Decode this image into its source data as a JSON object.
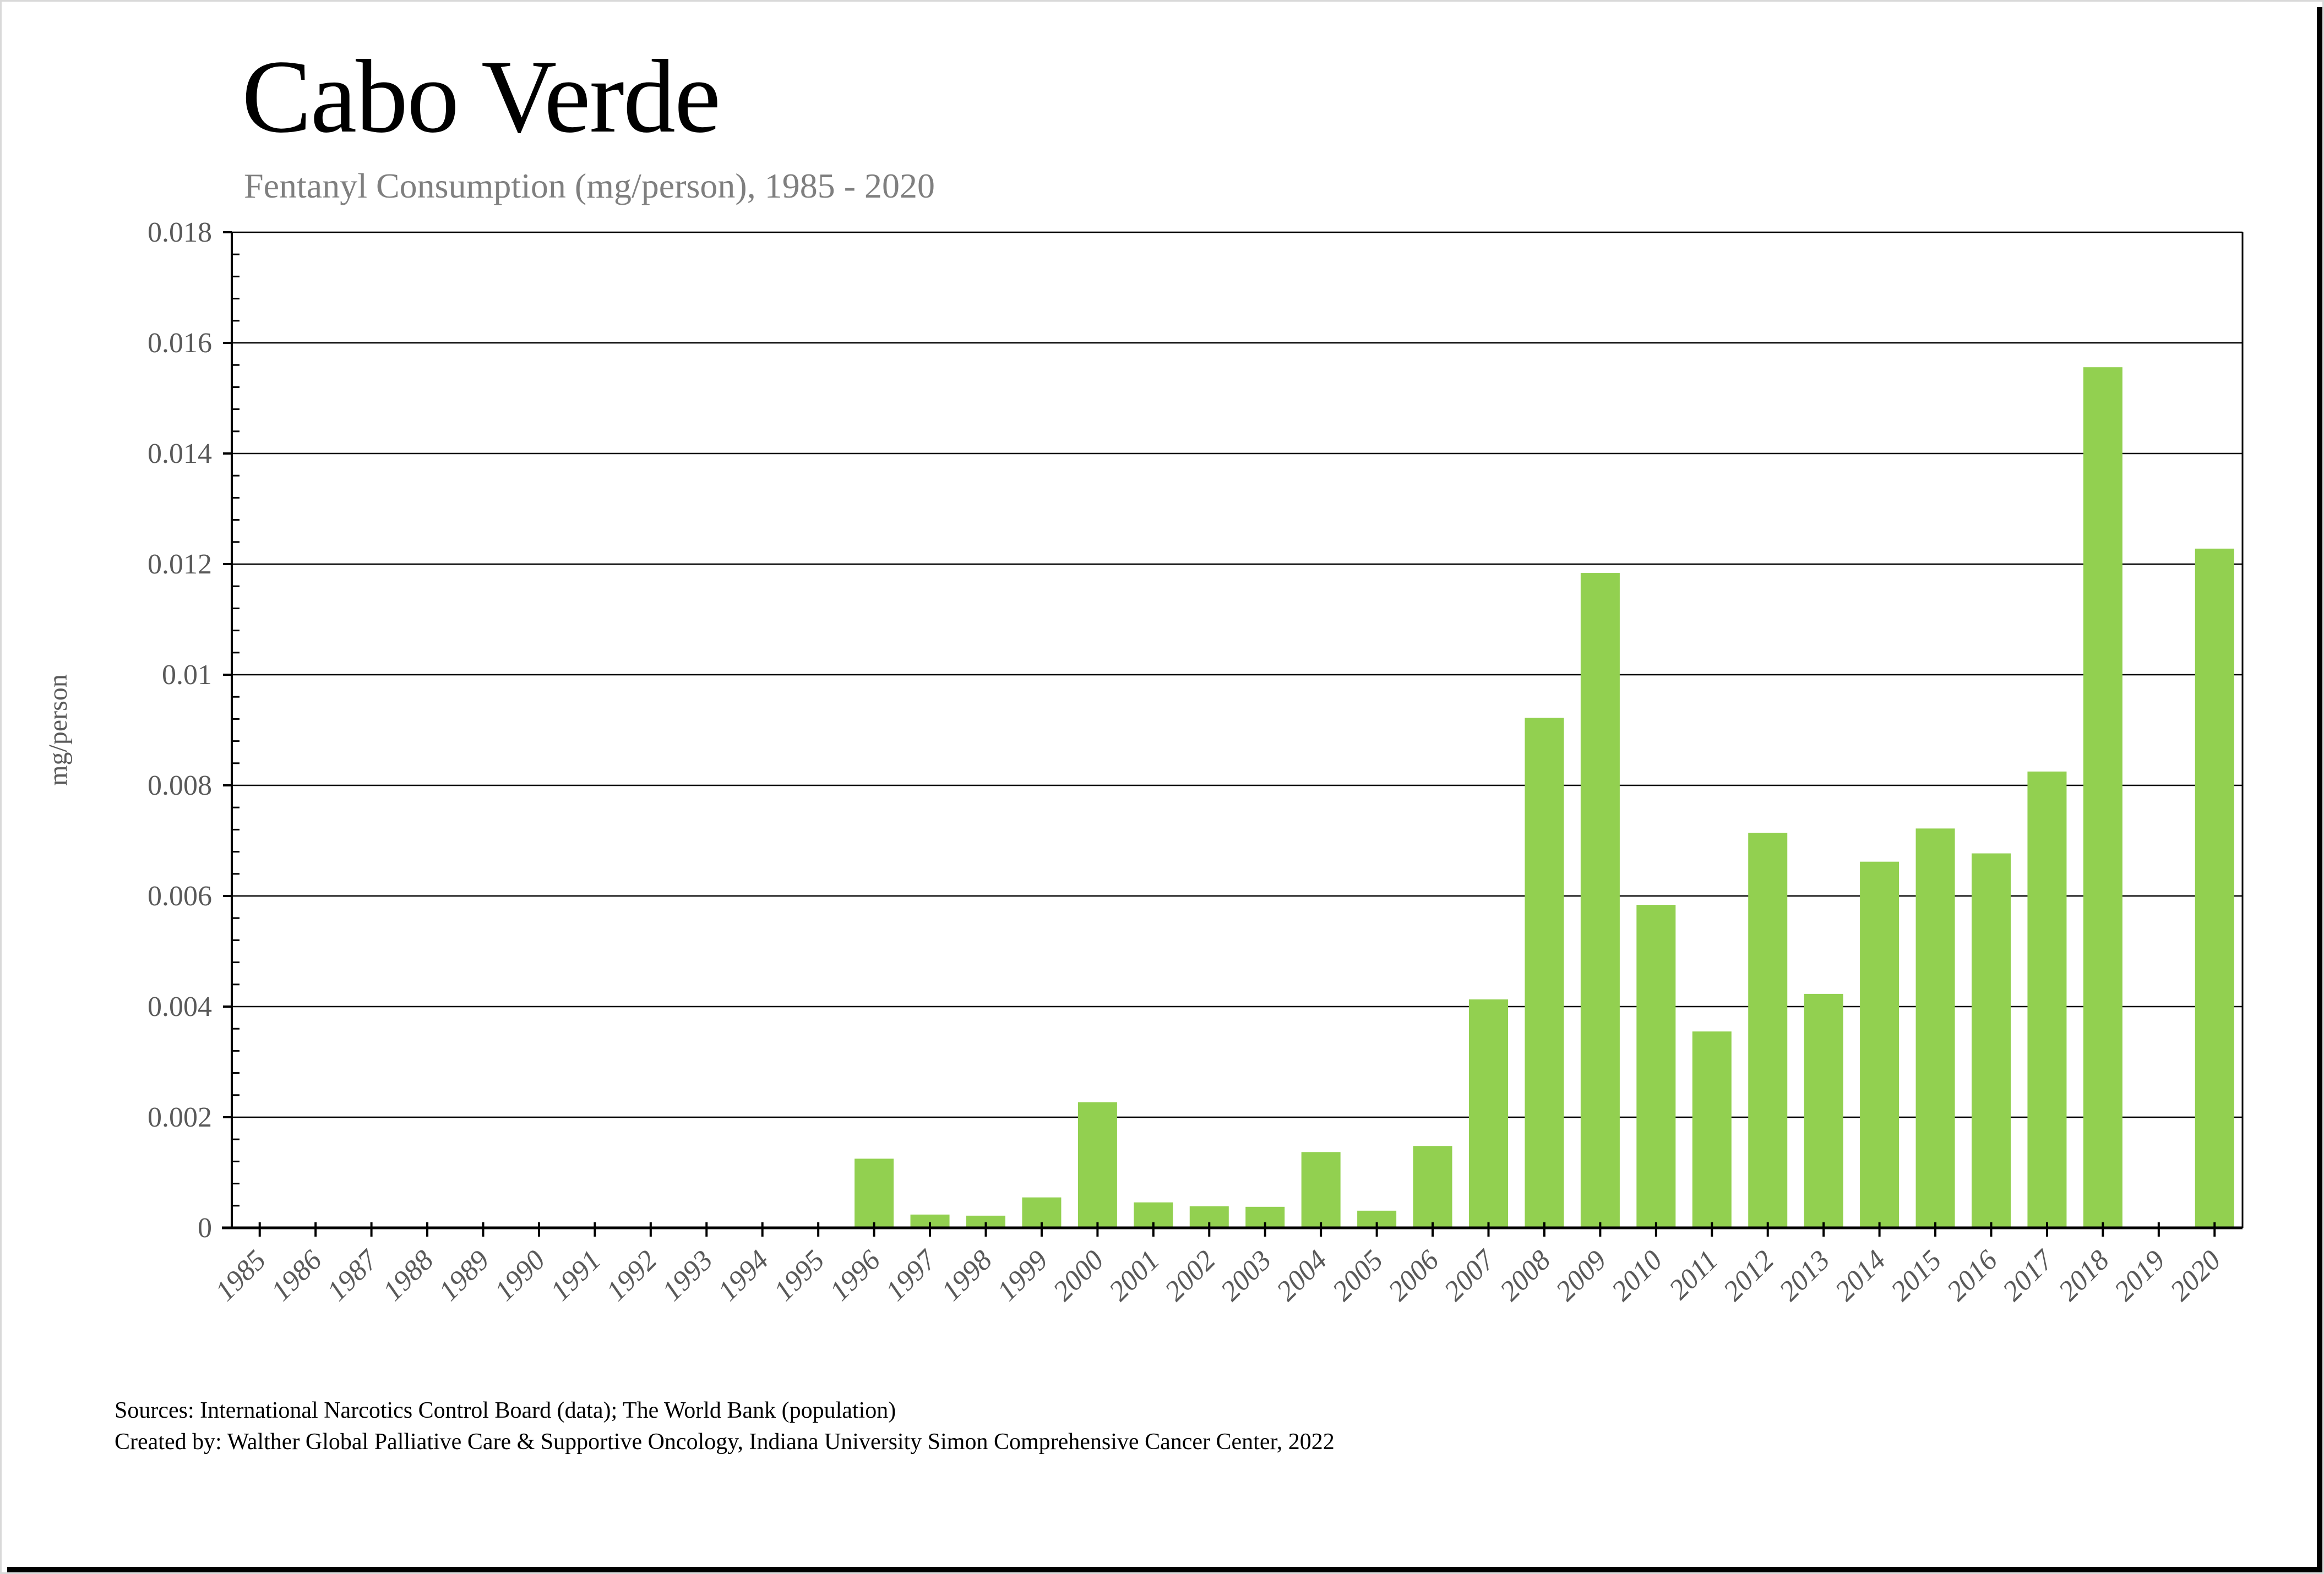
{
  "page": {
    "title": "Cabo Verde",
    "subtitle": "Fentanyl Consumption (mg/person), 1985 - 2020"
  },
  "footer": {
    "line1": "Sources: International Narcotics Control Board (data); The World Bank (population)",
    "line2": "Created by: Walther Global Palliative Care & Supportive Oncology, Indiana University Simon Comprehensive Cancer Center, 2022"
  },
  "colors": {
    "bar": "#92D050",
    "grid": "#000000",
    "tick_label": "#595959",
    "subtitle": "#7F7F7F",
    "title": "#000000"
  },
  "chart_data": {
    "type": "bar",
    "title": "Cabo Verde",
    "subtitle": "Fentanyl Consumption (mg/person), 1985 - 2020",
    "xlabel": "",
    "ylabel": "mg/person",
    "ylim": [
      0,
      0.018
    ],
    "ytick_interval": 0.002,
    "yminor_interval": 0.0004,
    "ytick_labels": [
      "0",
      "0.002",
      "0.004",
      "0.006",
      "0.008",
      "0.01",
      "0.012",
      "0.014",
      "0.016",
      "0.018"
    ],
    "grid": "horizontal-major",
    "legend": "none",
    "bar_color": "#92D050",
    "categories": [
      1985,
      1986,
      1987,
      1988,
      1989,
      1990,
      1991,
      1992,
      1993,
      1994,
      1995,
      1996,
      1997,
      1998,
      1999,
      2000,
      2001,
      2002,
      2003,
      2004,
      2005,
      2006,
      2007,
      2008,
      2009,
      2010,
      2011,
      2012,
      2013,
      2014,
      2015,
      2016,
      2017,
      2018,
      2019,
      2020
    ],
    "values": [
      0,
      0,
      0,
      0,
      0,
      0,
      0,
      0,
      0,
      0,
      0,
      0.00125,
      0.00024,
      0.00022,
      0.00055,
      0.00227,
      0.00046,
      0.00039,
      0.00038,
      0.00137,
      0.00031,
      0.00148,
      0.00413,
      0.00922,
      0.01184,
      0.00584,
      0.00355,
      0.00714,
      0.00423,
      0.00662,
      0.00722,
      0.00677,
      0.00825,
      0.01556,
      0,
      0.01228
    ]
  }
}
